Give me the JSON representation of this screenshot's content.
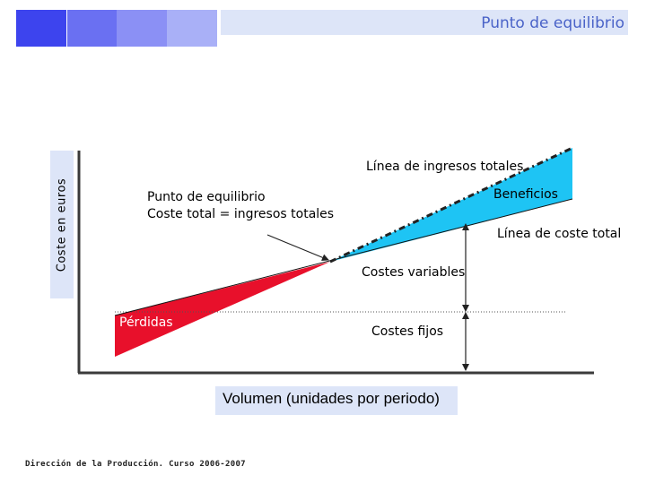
{
  "header": {
    "title": "Punto de equilibrio",
    "square_colors": [
      "#3d44ee",
      "#6a70f2",
      "#8b90f5",
      "#a9b0f7"
    ]
  },
  "diagram": {
    "y_axis_label": "Coste en euros",
    "x_axis_label": "Volumen (unidades por periodo)",
    "labels": {
      "revenue_line": "Línea de ingresos totales",
      "benefits": "Beneficios",
      "break_even_title": "Punto de equilibrio",
      "break_even_formula": "Coste total = ingresos totales",
      "total_cost_line": "Línea de coste total",
      "variable_costs": "Costes variables",
      "losses": "Pérdidas",
      "fixed_costs": "Costes fijos"
    },
    "colors": {
      "losses_area": "#e8102b",
      "benefits_area": "#1ec4f4",
      "axis": "#3a3a3a",
      "label_background": "#dde5f8"
    }
  },
  "footer": {
    "text": "Dirección de la Producción. Curso 2006-2007"
  }
}
